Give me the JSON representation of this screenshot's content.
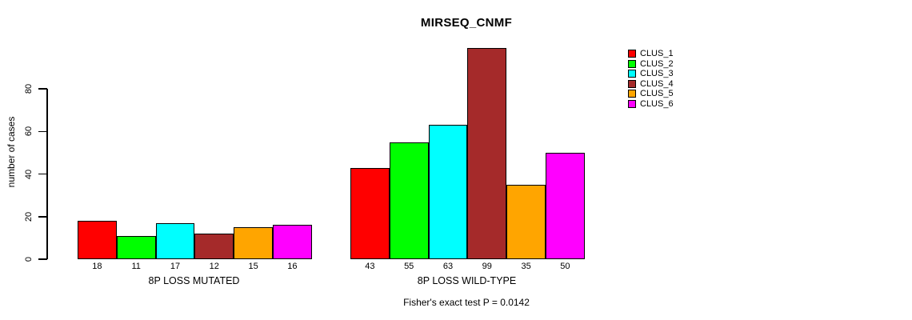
{
  "title": "MIRSEQ_CNMF",
  "footer": "Fisher's exact test P = 0.0142",
  "chart_data": {
    "type": "bar",
    "title": "MIRSEQ_CNMF",
    "ylabel": "number of cases",
    "xlabel": "",
    "yticks": [
      0,
      20,
      40,
      60,
      80
    ],
    "ylim": [
      0,
      100
    ],
    "grid": false,
    "bar_value_labels_shown": true,
    "categories": [
      "CLUS_1",
      "CLUS_2",
      "CLUS_3",
      "CLUS_4",
      "CLUS_5",
      "CLUS_6"
    ],
    "series_colors": [
      "#FF0000",
      "#00FF00",
      "#00FFFF",
      "#A52A2A",
      "#FFA500",
      "#FF00FF"
    ],
    "groups": [
      {
        "label": "8P LOSS MUTATED",
        "values": [
          18,
          11,
          17,
          12,
          15,
          16
        ]
      },
      {
        "label": "8P LOSS WILD-TYPE",
        "values": [
          43,
          55,
          63,
          99,
          35,
          50
        ]
      }
    ],
    "legend": {
      "position": "top-right",
      "items": [
        {
          "label": "CLUS_1",
          "color": "#FF0000"
        },
        {
          "label": "CLUS_2",
          "color": "#00FF00"
        },
        {
          "label": "CLUS_3",
          "color": "#00FFFF"
        },
        {
          "label": "CLUS_4",
          "color": "#A52A2A"
        },
        {
          "label": "CLUS_5",
          "color": "#FFA500"
        },
        {
          "label": "CLUS_6",
          "color": "#FF00FF"
        }
      ]
    },
    "annotation": "Fisher's exact test P = 0.0142"
  }
}
